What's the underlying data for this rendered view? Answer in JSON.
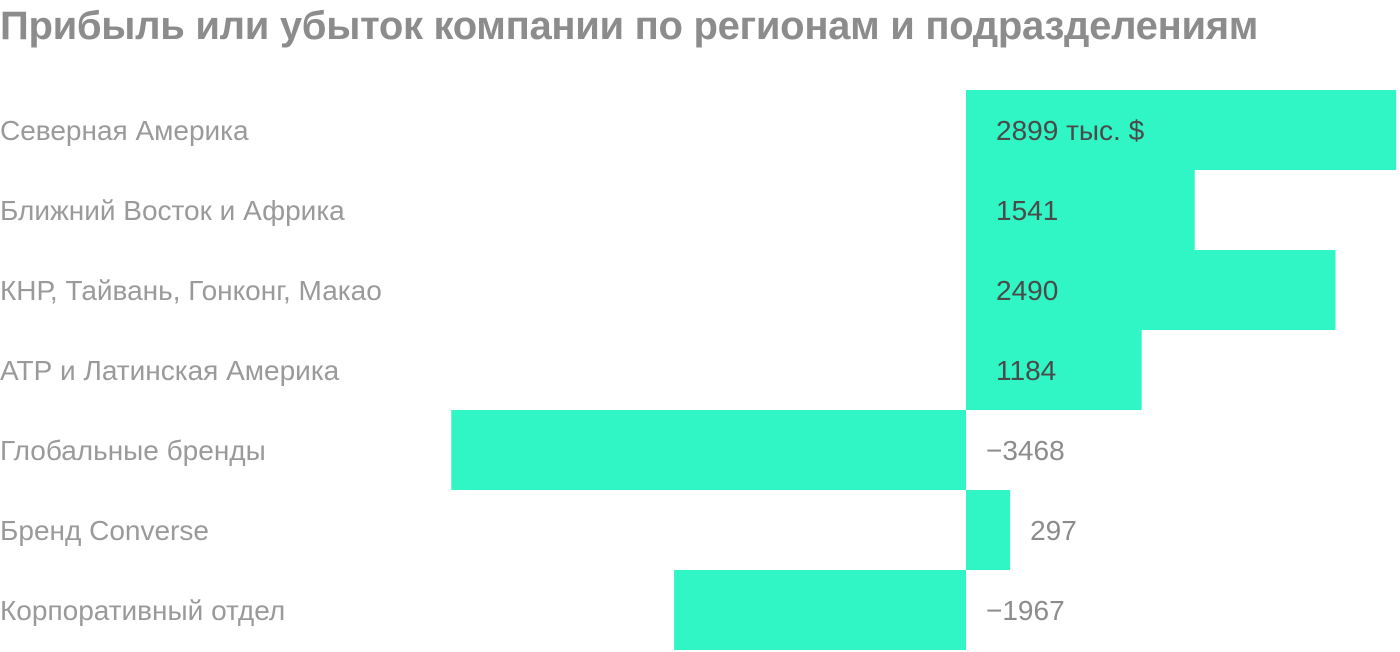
{
  "chart_data": {
    "type": "bar",
    "orientation": "horizontal",
    "title": "Прибыль или убыток компании по регионам и подразделениям",
    "unit_label": "тыс. $",
    "bar_color": "#30f5c5",
    "categories": [
      "Северная Америка",
      "Ближний Восток и Африка",
      "КНР, Тайвань, Гонконг, Макао",
      "АТР и Латинская Америка",
      "Глобальные бренды",
      "Бренд Converse",
      "Корпоративный отдел"
    ],
    "values": [
      2899,
      1541,
      2490,
      1184,
      -3468,
      297,
      -1967
    ],
    "value_labels": [
      "2899 тыс. $",
      "1541",
      "2490",
      "1184",
      "−3468",
      "297",
      "−1967"
    ],
    "grid": false,
    "legend": "none"
  }
}
